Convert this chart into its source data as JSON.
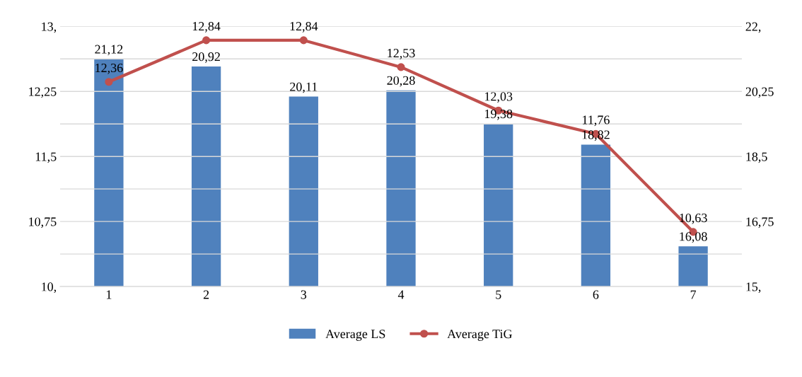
{
  "chart_data": {
    "type": "bar",
    "categories": [
      "1",
      "2",
      "3",
      "4",
      "5",
      "6",
      "7"
    ],
    "series": [
      {
        "name": "Average LS",
        "axis": "y2",
        "color": "#4f81bd",
        "values": [
          21.12,
          20.92,
          20.11,
          20.28,
          19.38,
          18.82,
          16.08
        ],
        "value_labels": [
          "21,12",
          "20,92",
          "20,11",
          "20,28",
          "19,38",
          "18,82",
          "16,08"
        ]
      },
      {
        "name": "Average TiG",
        "type": "line",
        "axis": "y",
        "color": "#c0504d",
        "marker": "circle",
        "values": [
          12.36,
          12.84,
          12.84,
          12.53,
          12.03,
          11.76,
          10.63
        ],
        "value_labels": [
          "12,36",
          "12,84",
          "12,84",
          "12,53",
          "12,03",
          "11,76",
          "10,63"
        ]
      }
    ],
    "ylim": [
      10,
      13
    ],
    "yticks": [
      {
        "value": 10,
        "label": "10,"
      },
      {
        "value": 10.375,
        "label": null
      },
      {
        "value": 10.75,
        "label": "10,75"
      },
      {
        "value": 11.125,
        "label": null
      },
      {
        "value": 11.5,
        "label": "11,5"
      },
      {
        "value": 11.875,
        "label": null
      },
      {
        "value": 12.25,
        "label": "12,25"
      },
      {
        "value": 12.625,
        "label": null
      },
      {
        "value": 13,
        "label": "13,"
      }
    ],
    "y2lim": [
      15,
      22
    ],
    "y2ticks": [
      {
        "value": 15,
        "label": "15,"
      },
      {
        "value": 16.75,
        "label": "16,75"
      },
      {
        "value": 18.5,
        "label": "18,5"
      },
      {
        "value": 20.25,
        "label": "20,25"
      },
      {
        "value": 22,
        "label": "22,"
      }
    ],
    "grid": "y",
    "legend": "bottom"
  }
}
